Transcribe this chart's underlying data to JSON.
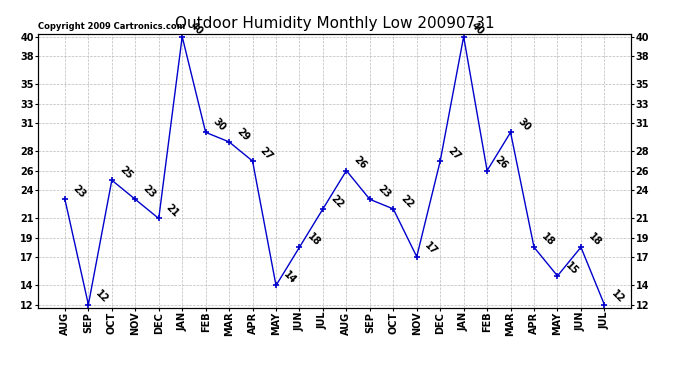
{
  "title": "Outdoor Humidity Monthly Low 20090731",
  "copyright_text": "Copyright 2009 Cartronics.com",
  "categories": [
    "AUG",
    "SEP",
    "OCT",
    "NOV",
    "DEC",
    "JAN",
    "FEB",
    "MAR",
    "APR",
    "MAY",
    "JUN",
    "JUL",
    "AUG",
    "SEP",
    "OCT",
    "NOV",
    "DEC",
    "JAN",
    "FEB",
    "MAR",
    "APR",
    "MAY",
    "JUN",
    "JUL"
  ],
  "values": [
    23,
    12,
    25,
    23,
    21,
    40,
    30,
    29,
    27,
    14,
    18,
    22,
    26,
    23,
    22,
    17,
    27,
    40,
    26,
    30,
    18,
    15,
    18,
    12
  ],
  "line_color": "#0000cc",
  "marker": "+",
  "ylim_min": 12,
  "ylim_max": 40,
  "yticks": [
    12,
    14,
    17,
    19,
    21,
    24,
    26,
    28,
    31,
    33,
    35,
    38,
    40
  ],
  "grid_color": "#bbbbbb",
  "grid_style": "--",
  "background_color": "#ffffff",
  "title_fontsize": 11,
  "tick_fontsize": 7,
  "annotation_fontsize": 7,
  "copyright_fontsize": 6
}
